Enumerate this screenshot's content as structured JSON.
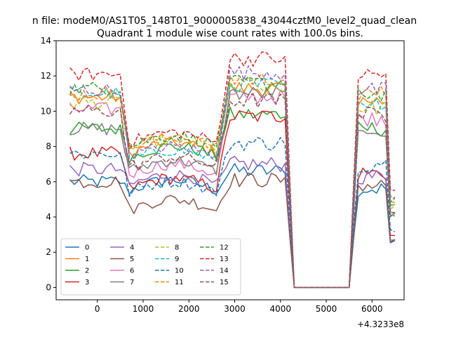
{
  "figure": {
    "suptitle": "n file: modeM0/AS1T05_148T01_9000005838_43044cztM0_level2_quad_clean"
  },
  "chart_data": {
    "type": "line",
    "title": "Quadrant 1 module wise count rates with 100.0s bins.",
    "xlabel": "",
    "ylabel": "",
    "x_offset_label": "+4.3233e8",
    "xlim": [
      -900,
      6700
    ],
    "ylim": [
      -0.7,
      14.0
    ],
    "xticks": [
      0,
      1000,
      2000,
      3000,
      4000,
      5000,
      6000
    ],
    "xtick_labels": [
      "0",
      "1000",
      "2000",
      "3000",
      "4000",
      "5000",
      "6000"
    ],
    "yticks": [
      0,
      2,
      4,
      6,
      8,
      10,
      12,
      14
    ],
    "ytick_labels": [
      "0",
      "2",
      "4",
      "6",
      "8",
      "10",
      "12",
      "14"
    ],
    "grid": false,
    "legend_position": "lower-left",
    "legend_columns": 4,
    "colors": [
      "#1f77b4",
      "#ff7f0e",
      "#2ca02c",
      "#d62728",
      "#9467bd",
      "#8c564b",
      "#e377c2",
      "#7f7f7f",
      "#bcbd22",
      "#17becf"
    ],
    "gap": {
      "x_start": 4300,
      "x_end": 5500,
      "value": 0
    },
    "series": [
      {
        "name": "0",
        "base_low": 6.0,
        "base_mid": 5.5,
        "base_high": 6.6,
        "base_late": 5.6,
        "dashed": false
      },
      {
        "name": "1",
        "base_low": 10.8,
        "base_mid": 7.6,
        "base_high": 11.3,
        "base_late": 10.6,
        "dashed": false
      },
      {
        "name": "2",
        "base_low": 9.0,
        "base_mid": 7.4,
        "base_high": 9.8,
        "base_late": 9.0,
        "dashed": false
      },
      {
        "name": "3",
        "base_low": 7.6,
        "base_mid": 5.6,
        "base_high": 9.7,
        "base_late": 6.5,
        "dashed": false
      },
      {
        "name": "4",
        "base_low": 6.7,
        "base_mid": 5.8,
        "base_high": 7.0,
        "base_late": 6.3,
        "dashed": false
      },
      {
        "name": "5",
        "base_low": 6.0,
        "base_mid": 4.4,
        "base_high": 6.1,
        "base_late": 5.8,
        "dashed": false
      },
      {
        "name": "6",
        "base_low": 10.1,
        "base_mid": 6.4,
        "base_high": 10.8,
        "base_late": 9.6,
        "dashed": false
      },
      {
        "name": "7",
        "base_low": 9.0,
        "base_mid": 6.6,
        "base_high": 11.0,
        "base_late": 8.8,
        "dashed": false
      },
      {
        "name": "8",
        "base_low": 10.5,
        "base_mid": 7.8,
        "base_high": 11.2,
        "base_late": 10.2,
        "dashed": true
      },
      {
        "name": "9",
        "base_low": 11.0,
        "base_mid": 7.2,
        "base_high": 11.5,
        "base_late": 10.5,
        "dashed": true
      },
      {
        "name": "10",
        "base_low": 7.6,
        "base_mid": 5.4,
        "base_high": 8.2,
        "base_late": 7.0,
        "dashed": true
      },
      {
        "name": "11",
        "base_low": 11.0,
        "base_mid": 7.9,
        "base_high": 11.8,
        "base_late": 11.0,
        "dashed": true
      },
      {
        "name": "12",
        "base_low": 11.3,
        "base_mid": 8.0,
        "base_high": 11.6,
        "base_late": 11.0,
        "dashed": true
      },
      {
        "name": "13",
        "base_low": 12.1,
        "base_mid": 8.2,
        "base_high": 13.0,
        "base_late": 12.1,
        "dashed": true
      },
      {
        "name": "14",
        "base_low": 11.2,
        "base_mid": 7.4,
        "base_high": 12.2,
        "base_late": 11.2,
        "dashed": true
      },
      {
        "name": "15",
        "base_low": 10.0,
        "base_mid": 6.8,
        "base_high": 10.6,
        "base_late": 9.8,
        "dashed": true
      }
    ]
  }
}
